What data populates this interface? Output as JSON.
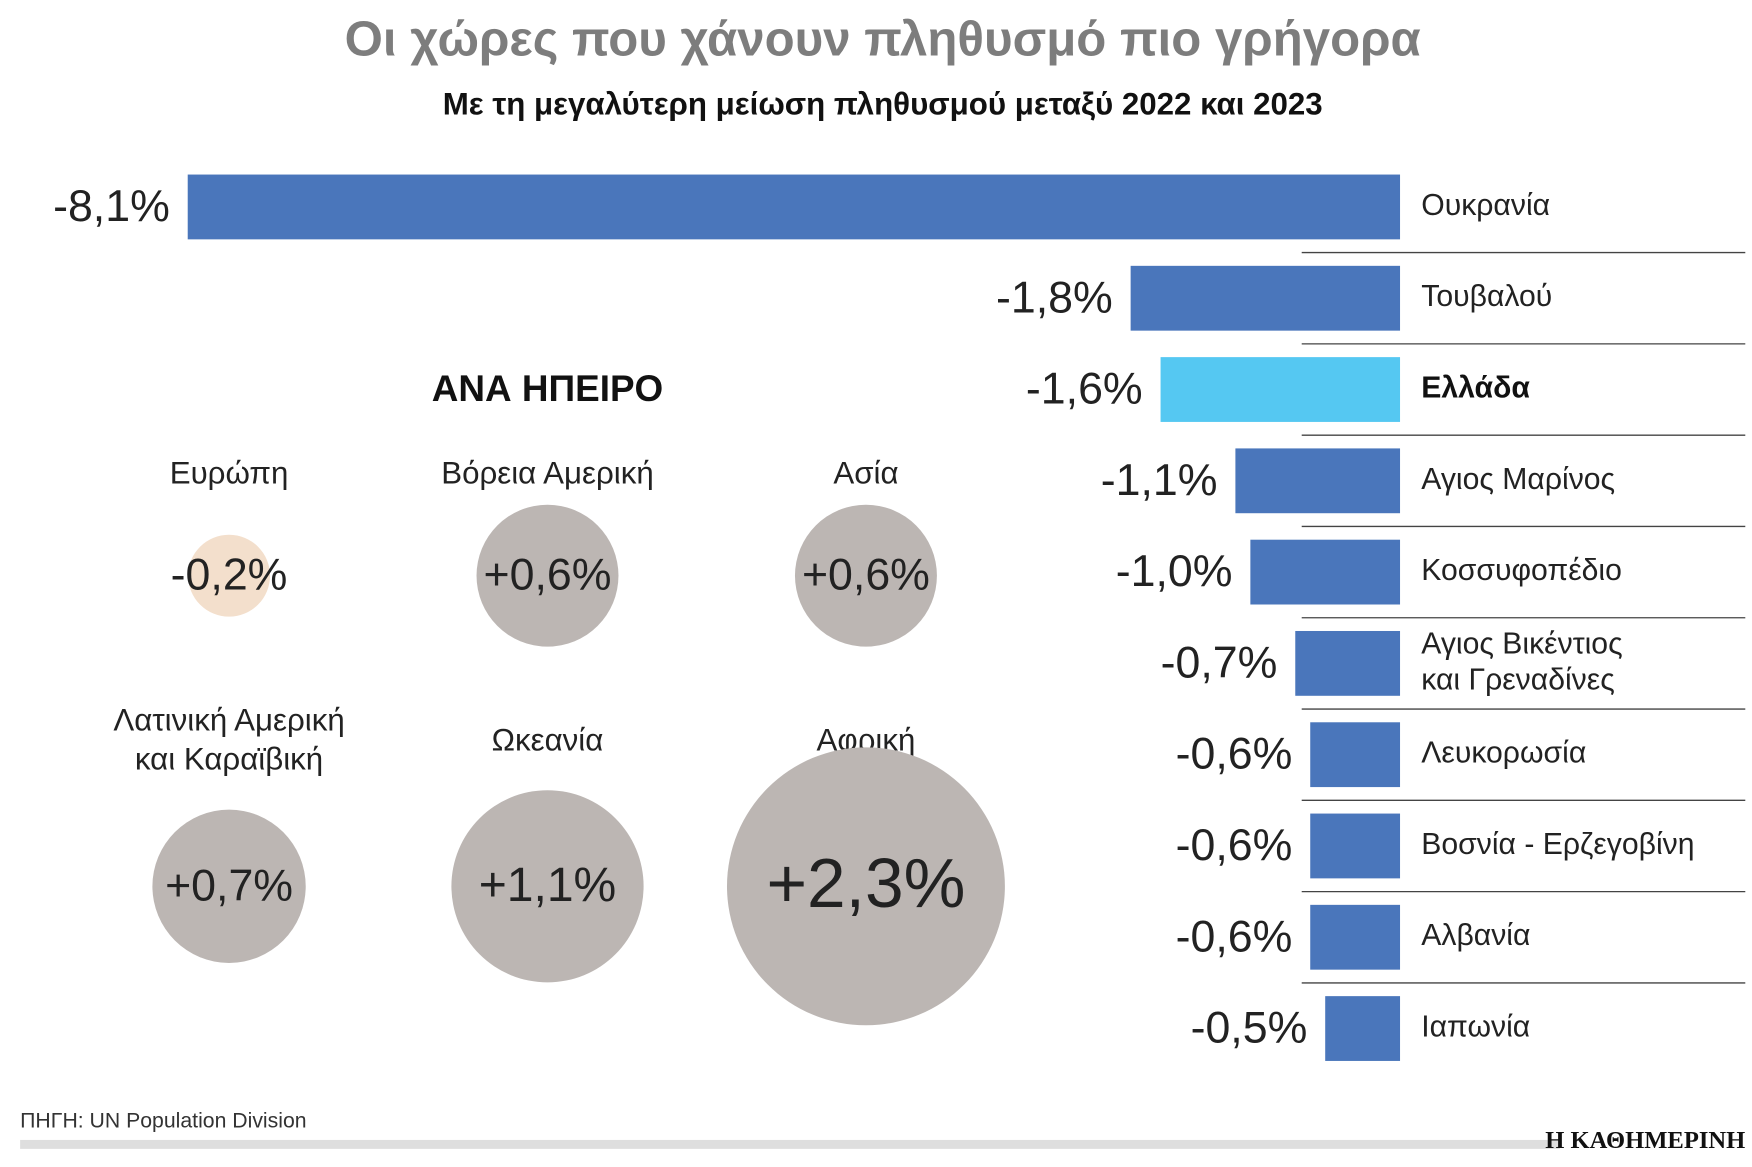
{
  "chart_data": [
    {
      "type": "bar",
      "orientation": "horizontal",
      "title": "Οι χώρες που χάνουν πληθυσμό πιο γρήγορα",
      "subtitle": "Με τη μεγαλύτερη μείωση πληθυσμού μεταξύ 2022 και 2023",
      "categories": [
        "Ουκρανία",
        "Τουβαλού",
        "Ελλάδα",
        "Αγιος Μαρίνος",
        "Κοσσυφοπέδιο",
        [
          "Αγιος Βικέντιος",
          "και Γρεναδίνες"
        ],
        "Λευκορωσία",
        "Βοσνία - Ερζεγοβίνη",
        "Αλβανία",
        "Ιαπωνία"
      ],
      "values": [
        -8.1,
        -1.8,
        -1.6,
        -1.1,
        -1.0,
        -0.7,
        -0.6,
        -0.6,
        -0.6,
        -0.5
      ],
      "value_labels": [
        "-8,1%",
        "-1,8%",
        "-1,6%",
        "-1,1%",
        "-1,0%",
        "-0,7%",
        "-0,6%",
        "-0,6%",
        "-0,6%",
        "-0,5%"
      ],
      "color": "#4a76bb",
      "highlight_index": 2,
      "highlight_color": "#55c8f2"
    },
    {
      "type": "bubble",
      "title": "ΑΝΑ ΗΠΕΙΡΟ",
      "categories": [
        "Ευρώπη",
        "Βόρεια Αμερική",
        "Ασία",
        [
          "Λατινική Αμερική",
          "και Καραϊβική"
        ],
        "Ωκεανία",
        "Αφρική"
      ],
      "values": [
        -0.2,
        0.6,
        0.6,
        0.7,
        1.1,
        2.3
      ],
      "value_labels": [
        "-0,2%",
        "+0,6%",
        "+0,6%",
        "+0,7%",
        "+1,1%",
        "+2,3%"
      ],
      "colors": [
        "#f3dfcc",
        "#bcb6b3",
        "#bcb6b3",
        "#bcb6b3",
        "#bcb6b3",
        "#bcb6b3"
      ]
    }
  ],
  "source": "ΠΗΓΗ: UN Population Division",
  "brand": "Η ΚΑΘΗΜΕΡΙΝΗ"
}
